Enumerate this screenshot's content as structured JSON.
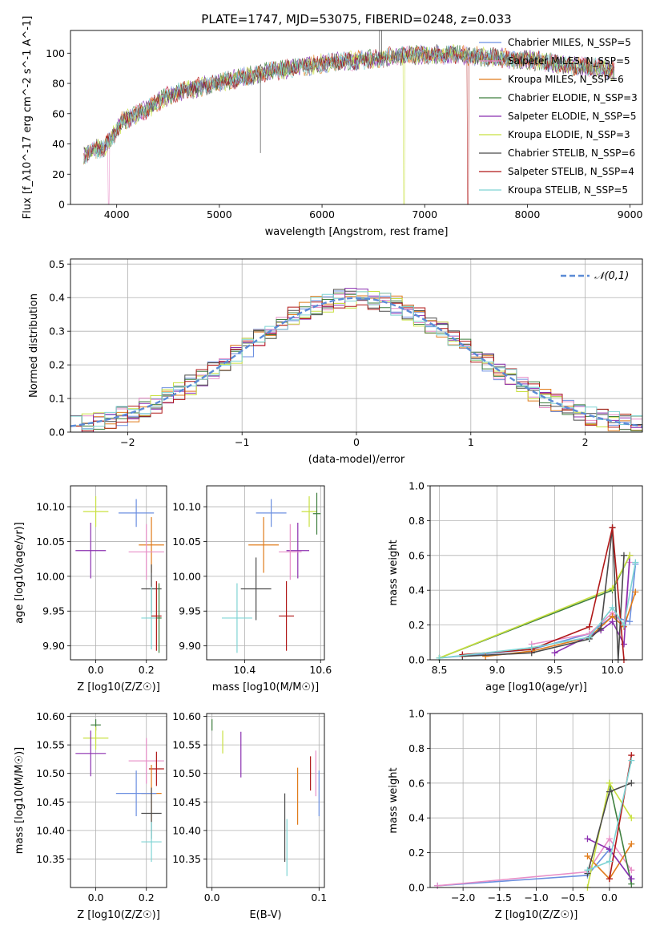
{
  "title": "PLATE=1747, MJD=53075, FIBERID=0248, z=0.033",
  "colors": {
    "chabrier_miles": "#6b8fe0",
    "salpeter_miles": "#e88fc8",
    "kroupa_miles": "#e07b1a",
    "chabrier_elodie": "#3f7f3f",
    "salpeter_elodie": "#8b2fb0",
    "kroupa_elodie": "#c8e040",
    "chabrier_stelib": "#4a4a4a",
    "salpeter_stelib": "#b01818",
    "kroupa_stelib": "#7fd4d4",
    "gaussian": "#5b8bd6",
    "grid": "#b0b0b0"
  },
  "chart_data": [
    {
      "id": "spectrum",
      "type": "line",
      "title": "PLATE=1747, MJD=53075, FIBERID=0248, z=0.033",
      "xlabel": "wavelength [Angstrom, rest frame]",
      "ylabel": "Flux [f_λ10^-17 erg cm^-2 s^-1 A^-1]",
      "xlim": [
        3550,
        9120
      ],
      "ylim": [
        0,
        115
      ],
      "xticks": [
        4000,
        5000,
        6000,
        7000,
        8000,
        9000
      ],
      "yticks": [
        0,
        20,
        40,
        60,
        80,
        100
      ],
      "grid": false,
      "legend_position": "right",
      "legend": [
        {
          "label": "Chabrier MILES, N_SSP=5",
          "color_key": "chabrier_miles"
        },
        {
          "label": "Salpeter MILES, N_SSP=5",
          "color_key": "salpeter_miles"
        },
        {
          "label": "Kroupa MILES, N_SSP=6",
          "color_key": "kroupa_miles"
        },
        {
          "label": "Chabrier ELODIE, N_SSP=3",
          "color_key": "chabrier_elodie"
        },
        {
          "label": "Salpeter ELODIE, N_SSP=5",
          "color_key": "salpeter_elodie"
        },
        {
          "label": "Kroupa ELODIE, N_SSP=3",
          "color_key": "kroupa_elodie"
        },
        {
          "label": "Chabrier STELIB, N_SSP=6",
          "color_key": "chabrier_stelib"
        },
        {
          "label": "Salpeter STELIB, N_SSP=4",
          "color_key": "salpeter_stelib"
        },
        {
          "label": "Kroupa STELIB, N_SSP=5",
          "color_key": "kroupa_stelib"
        }
      ],
      "continuum": [
        [
          3680,
          32
        ],
        [
          3780,
          36
        ],
        [
          3880,
          38
        ],
        [
          3960,
          45
        ],
        [
          4050,
          55
        ],
        [
          4200,
          60
        ],
        [
          4350,
          65
        ],
        [
          4500,
          72
        ],
        [
          4700,
          76
        ],
        [
          4900,
          79
        ],
        [
          5100,
          82
        ],
        [
          5300,
          85
        ],
        [
          5500,
          88
        ],
        [
          5700,
          90
        ],
        [
          5900,
          92
        ],
        [
          6100,
          94
        ],
        [
          6300,
          95
        ],
        [
          6500,
          96
        ],
        [
          6700,
          98
        ],
        [
          6900,
          99
        ],
        [
          7100,
          99
        ],
        [
          7300,
          99
        ],
        [
          7500,
          98
        ],
        [
          7700,
          97
        ],
        [
          7900,
          96
        ],
        [
          8100,
          95
        ],
        [
          8300,
          93
        ],
        [
          8500,
          91
        ],
        [
          8700,
          90
        ],
        [
          8850,
          88
        ]
      ],
      "dropouts": [
        {
          "series": "salpeter_miles",
          "x": 3920,
          "y": 0
        },
        {
          "series": "kroupa_elodie",
          "x": 6800,
          "y": 0
        },
        {
          "series": "salpeter_stelib",
          "x": 7420,
          "y": 0
        }
      ],
      "spikes": [
        {
          "x": 5400,
          "y": 34
        },
        {
          "x": 6560,
          "y": 115
        },
        {
          "x": 6580,
          "y": 115
        }
      ]
    },
    {
      "id": "residuals",
      "type": "histogram",
      "xlabel": "(data-model)/error",
      "ylabel": "Normed distribution",
      "xlim": [
        -2.5,
        2.5
      ],
      "ylim": [
        0,
        0.515
      ],
      "xticks": [
        -2,
        -1,
        0,
        1,
        2
      ],
      "yticks": [
        0.0,
        0.1,
        0.2,
        0.3,
        0.4,
        0.5
      ],
      "grid": true,
      "legend_position": "top-right",
      "legend": [
        {
          "label": "𝒩(0,1)",
          "color_key": "gaussian",
          "style": "dashed"
        }
      ],
      "bin_width": 0.1,
      "series_color_keys": [
        "chabrier_miles",
        "salpeter_miles",
        "kroupa_miles",
        "chabrier_elodie",
        "salpeter_elodie",
        "kroupa_elodie",
        "chabrier_stelib",
        "salpeter_stelib",
        "kroupa_stelib"
      ]
    },
    {
      "id": "age_vs_z",
      "type": "errorbar",
      "xlabel": "Z [log10(Z/Z☉)]",
      "ylabel": "age  [log10(age/yr)]",
      "xlim": [
        -0.1,
        0.28
      ],
      "ylim": [
        9.88,
        10.13
      ],
      "xticks": [
        0.0,
        0.2
      ],
      "yticks": [
        9.9,
        9.95,
        10.0,
        10.05,
        10.1
      ],
      "grid": true,
      "points": [
        {
          "color_key": "kroupa_elodie",
          "x": 0.0,
          "xerr": 0.05,
          "y": 10.093,
          "yerr": 0.022
        },
        {
          "color_key": "chabrier_miles",
          "x": 0.16,
          "xerr": 0.07,
          "y": 10.091,
          "yerr": 0.02
        },
        {
          "color_key": "kroupa_miles",
          "x": 0.22,
          "xerr": 0.05,
          "y": 10.045,
          "yerr": 0.04
        },
        {
          "color_key": "salpeter_elodie",
          "x": -0.02,
          "xerr": 0.06,
          "y": 10.037,
          "yerr": 0.04
        },
        {
          "color_key": "salpeter_miles",
          "x": 0.2,
          "xerr": 0.07,
          "y": 10.035,
          "yerr": 0.04
        },
        {
          "color_key": "chabrier_stelib",
          "x": 0.22,
          "xerr": 0.04,
          "y": 9.982,
          "yerr": 0.035
        },
        {
          "color_key": "kroupa_stelib",
          "x": 0.22,
          "xerr": 0.04,
          "y": 9.94,
          "yerr": 0.045
        },
        {
          "color_key": "salpeter_stelib",
          "x": 0.24,
          "xerr": 0.02,
          "y": 9.943,
          "yerr": 0.05
        },
        {
          "color_key": "chabrier_elodie",
          "x": 0.25,
          "xerr": 0.01,
          "y": 9.94,
          "yerr": 0.05
        }
      ]
    },
    {
      "id": "age_vs_mass",
      "type": "errorbar",
      "xlabel": "mass [log10(M/M☉)]",
      "ylabel": "",
      "xlim": [
        10.3,
        10.61
      ],
      "ylim": [
        9.88,
        10.13
      ],
      "xticks": [
        10.4,
        10.6
      ],
      "yticks": [
        9.9,
        9.95,
        10.0,
        10.05,
        10.1
      ],
      "grid": true,
      "points": [
        {
          "color_key": "kroupa_elodie",
          "x": 10.57,
          "xerr": 0.02,
          "y": 10.093,
          "yerr": 0.022
        },
        {
          "color_key": "chabrier_elodie",
          "x": 10.59,
          "xerr": 0.01,
          "y": 10.09,
          "yerr": 0.03
        },
        {
          "color_key": "chabrier_miles",
          "x": 10.47,
          "xerr": 0.04,
          "y": 10.091,
          "yerr": 0.02
        },
        {
          "color_key": "kroupa_miles",
          "x": 10.45,
          "xerr": 0.04,
          "y": 10.045,
          "yerr": 0.04
        },
        {
          "color_key": "salpeter_elodie",
          "x": 10.54,
          "xerr": 0.03,
          "y": 10.037,
          "yerr": 0.04
        },
        {
          "color_key": "salpeter_miles",
          "x": 10.52,
          "xerr": 0.03,
          "y": 10.035,
          "yerr": 0.04
        },
        {
          "color_key": "chabrier_stelib",
          "x": 10.43,
          "xerr": 0.04,
          "y": 9.982,
          "yerr": 0.045
        },
        {
          "color_key": "kroupa_stelib",
          "x": 10.38,
          "xerr": 0.04,
          "y": 9.94,
          "yerr": 0.05
        },
        {
          "color_key": "salpeter_stelib",
          "x": 10.51,
          "xerr": 0.02,
          "y": 9.943,
          "yerr": 0.05
        }
      ]
    },
    {
      "id": "weight_vs_age",
      "type": "line",
      "xlabel": "age  [log10(age/yr)]",
      "ylabel": "mass weight",
      "xlim": [
        8.42,
        10.26
      ],
      "ylim": [
        0,
        1.0
      ],
      "xticks": [
        8.5,
        9.0,
        9.5,
        10.0
      ],
      "yticks": [
        0.0,
        0.2,
        0.4,
        0.6,
        0.8,
        1.0
      ],
      "grid": true,
      "series": [
        {
          "color_key": "chabrier_miles",
          "x": [
            8.5,
            9.3,
            9.8,
            10.0,
            10.15,
            10.2
          ],
          "y": [
            0.01,
            0.06,
            0.15,
            0.25,
            0.22,
            0.55
          ]
        },
        {
          "color_key": "salpeter_miles",
          "x": [
            9.3,
            9.8,
            10.0,
            10.1,
            10.15
          ],
          "y": [
            0.09,
            0.15,
            0.27,
            0.2,
            0.56
          ]
        },
        {
          "color_key": "kroupa_miles",
          "x": [
            8.9,
            9.3,
            9.8,
            10.0,
            10.1,
            10.2
          ],
          "y": [
            0.02,
            0.05,
            0.13,
            0.25,
            0.19,
            0.39
          ]
        },
        {
          "color_key": "chabrier_elodie",
          "x": [
            8.5,
            10.0,
            10.15
          ],
          "y": [
            0.01,
            0.4,
            0.6
          ]
        },
        {
          "color_key": "salpeter_elodie",
          "x": [
            9.5,
            9.9,
            10.0,
            10.1,
            10.15
          ],
          "y": [
            0.04,
            0.17,
            0.22,
            0.09,
            0.6
          ]
        },
        {
          "color_key": "kroupa_elodie",
          "x": [
            8.5,
            10.0,
            10.15
          ],
          "y": [
            0.01,
            0.41,
            0.6
          ]
        },
        {
          "color_key": "chabrier_stelib",
          "x": [
            8.7,
            9.3,
            9.8,
            9.9,
            10.0,
            10.05,
            10.1
          ],
          "y": [
            0.02,
            0.04,
            0.12,
            0.18,
            0.76,
            0.0,
            0.6
          ]
        },
        {
          "color_key": "salpeter_stelib",
          "x": [
            8.7,
            9.3,
            9.8,
            10.0,
            10.1
          ],
          "y": [
            0.03,
            0.06,
            0.19,
            0.76,
            0.0
          ]
        },
        {
          "color_key": "kroupa_stelib",
          "x": [
            8.5,
            9.3,
            9.8,
            10.0,
            10.1,
            10.2
          ],
          "y": [
            0.01,
            0.07,
            0.13,
            0.3,
            0.2,
            0.56
          ]
        }
      ]
    },
    {
      "id": "mass_vs_z",
      "type": "errorbar",
      "xlabel": "Z [log10(Z/Z☉)]",
      "ylabel": "mass [log10(M/M☉)]",
      "xlim": [
        -0.1,
        0.28
      ],
      "ylim": [
        10.3,
        10.605
      ],
      "xticks": [
        0.0,
        0.2
      ],
      "yticks": [
        10.35,
        10.4,
        10.45,
        10.5,
        10.55,
        10.6
      ],
      "grid": true,
      "points": [
        {
          "color_key": "chabrier_elodie",
          "x": 0.0,
          "xerr": 0.02,
          "y": 10.585,
          "yerr": 0.01
        },
        {
          "color_key": "kroupa_elodie",
          "x": 0.0,
          "xerr": 0.05,
          "y": 10.562,
          "yerr": 0.02
        },
        {
          "color_key": "salpeter_elodie",
          "x": -0.02,
          "xerr": 0.06,
          "y": 10.535,
          "yerr": 0.04
        },
        {
          "color_key": "salpeter_miles",
          "x": 0.2,
          "xerr": 0.07,
          "y": 10.522,
          "yerr": 0.04
        },
        {
          "color_key": "salpeter_stelib",
          "x": 0.24,
          "xerr": 0.03,
          "y": 10.508,
          "yerr": 0.03
        },
        {
          "color_key": "kroupa_miles",
          "x": 0.22,
          "xerr": 0.04,
          "y": 10.465,
          "yerr": 0.05
        },
        {
          "color_key": "chabrier_miles",
          "x": 0.16,
          "xerr": 0.08,
          "y": 10.465,
          "yerr": 0.04
        },
        {
          "color_key": "chabrier_stelib",
          "x": 0.22,
          "xerr": 0.04,
          "y": 10.43,
          "yerr": 0.045
        },
        {
          "color_key": "kroupa_stelib",
          "x": 0.22,
          "xerr": 0.04,
          "y": 10.38,
          "yerr": 0.035
        }
      ]
    },
    {
      "id": "mass_vs_ebv",
      "type": "errorbar",
      "xlabel": "E(B-V)",
      "ylabel": "",
      "xlim": [
        -0.005,
        0.105
      ],
      "ylim": [
        10.3,
        10.605
      ],
      "xticks": [
        0.0,
        0.1
      ],
      "yticks": [
        10.35,
        10.4,
        10.45,
        10.5,
        10.55,
        10.6
      ],
      "grid": true,
      "points": [
        {
          "color_key": "chabrier_elodie",
          "x": 0.0,
          "xerr": 0.0,
          "y": 10.585,
          "yerr": 0.01
        },
        {
          "color_key": "kroupa_elodie",
          "x": 0.01,
          "xerr": 0.0,
          "y": 10.555,
          "yerr": 0.02
        },
        {
          "color_key": "salpeter_elodie",
          "x": 0.027,
          "xerr": 0.0,
          "y": 10.533,
          "yerr": 0.04
        },
        {
          "color_key": "salpeter_miles",
          "x": 0.097,
          "xerr": 0.0,
          "y": 10.5,
          "yerr": 0.04
        },
        {
          "color_key": "salpeter_stelib",
          "x": 0.092,
          "xerr": 0.0,
          "y": 10.5,
          "yerr": 0.03
        },
        {
          "color_key": "kroupa_miles",
          "x": 0.08,
          "xerr": 0.0,
          "y": 10.46,
          "yerr": 0.05
        },
        {
          "color_key": "chabrier_miles",
          "x": 0.1,
          "xerr": 0.0,
          "y": 10.465,
          "yerr": 0.04
        },
        {
          "color_key": "chabrier_stelib",
          "x": 0.068,
          "xerr": 0.0,
          "y": 10.405,
          "yerr": 0.06
        },
        {
          "color_key": "kroupa_stelib",
          "x": 0.07,
          "xerr": 0.0,
          "y": 10.37,
          "yerr": 0.05
        }
      ]
    },
    {
      "id": "weight_vs_z",
      "type": "line",
      "xlabel": "Z [log10(Z/Z☉)]",
      "ylabel": "mass weight",
      "xlim": [
        -2.45,
        0.45
      ],
      "ylim": [
        0,
        1.0
      ],
      "xticks": [
        -2.0,
        -1.5,
        -1.0,
        -0.5,
        0.0
      ],
      "yticks": [
        0.0,
        0.2,
        0.4,
        0.6,
        0.8,
        1.0
      ],
      "grid": true,
      "series": [
        {
          "color_key": "chabrier_miles",
          "x": [
            -2.35,
            -0.3,
            0.0,
            0.3
          ],
          "y": [
            0.01,
            0.07,
            0.22,
            0.05
          ]
        },
        {
          "color_key": "salpeter_miles",
          "x": [
            -2.35,
            -0.3,
            0.0,
            0.3
          ],
          "y": [
            0.01,
            0.09,
            0.28,
            0.1
          ]
        },
        {
          "color_key": "kroupa_miles",
          "x": [
            -0.3,
            0.0,
            0.3
          ],
          "y": [
            0.18,
            0.05,
            0.25
          ]
        },
        {
          "color_key": "chabrier_elodie",
          "x": [
            0.0,
            0.3
          ],
          "y": [
            0.6,
            0.02
          ]
        },
        {
          "color_key": "salpeter_elodie",
          "x": [
            -0.3,
            0.0,
            0.3
          ],
          "y": [
            0.28,
            0.22,
            0.05
          ]
        },
        {
          "color_key": "kroupa_elodie",
          "x": [
            -0.3,
            0.0,
            0.3
          ],
          "y": [
            0.0,
            0.6,
            0.4
          ]
        },
        {
          "color_key": "chabrier_stelib",
          "x": [
            -0.3,
            0.0,
            0.3
          ],
          "y": [
            0.08,
            0.55,
            0.6
          ]
        },
        {
          "color_key": "salpeter_stelib",
          "x": [
            0.0,
            0.3
          ],
          "y": [
            0.05,
            0.76
          ]
        },
        {
          "color_key": "kroupa_stelib",
          "x": [
            -0.3,
            0.0,
            0.3
          ],
          "y": [
            0.1,
            0.15,
            0.73
          ]
        }
      ]
    }
  ]
}
